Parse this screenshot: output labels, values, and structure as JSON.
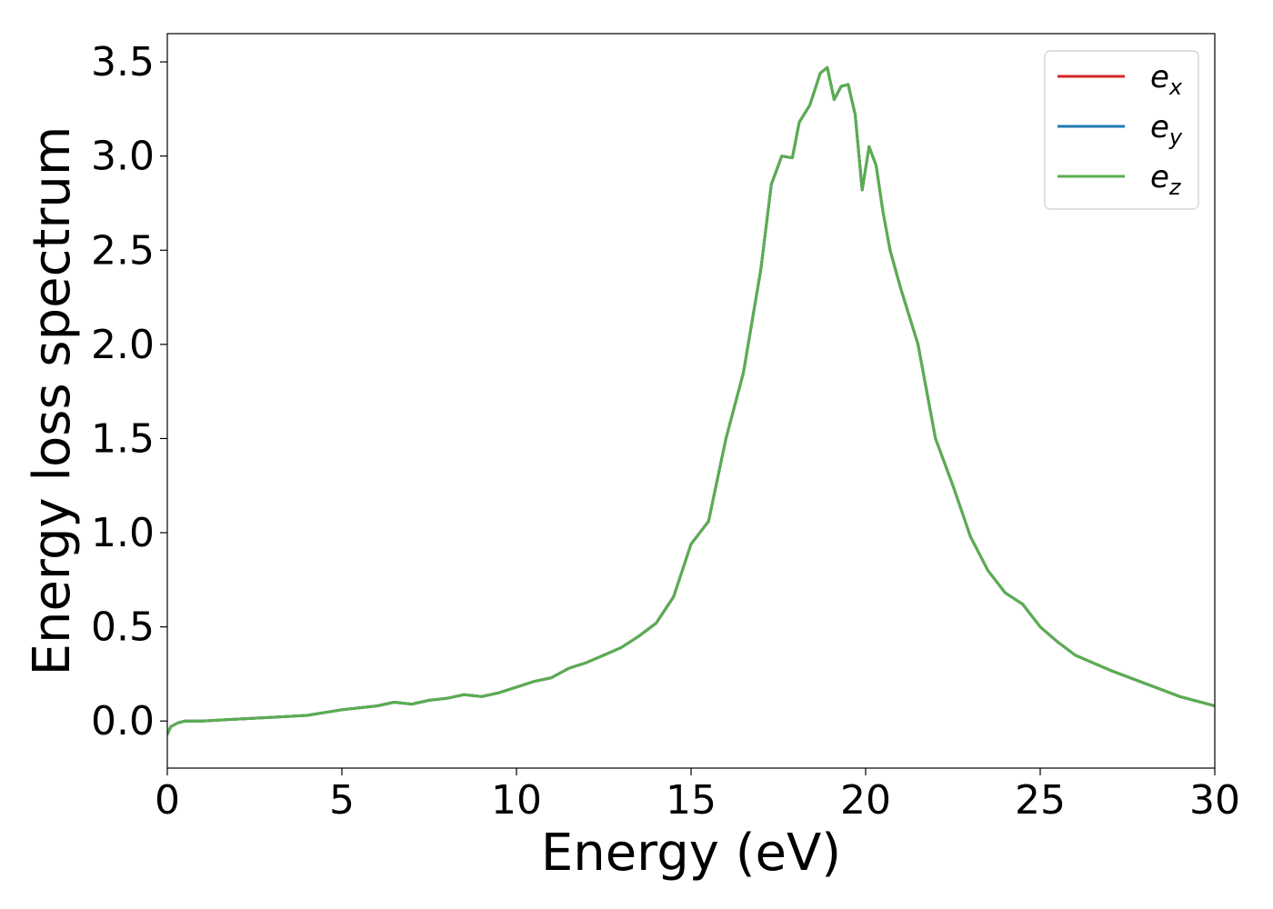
{
  "chart_data": {
    "type": "line",
    "xlabel": "Energy (eV)",
    "ylabel": "Energy loss spectrum",
    "xlim": [
      0,
      30
    ],
    "ylim": [
      -0.25,
      3.65
    ],
    "xticks": [
      0,
      5,
      10,
      15,
      20,
      25,
      30
    ],
    "xtick_labels": [
      "0",
      "5",
      "10",
      "15",
      "20",
      "25",
      "30"
    ],
    "yticks": [
      0.0,
      0.5,
      1.0,
      1.5,
      2.0,
      2.5,
      3.0,
      3.5
    ],
    "ytick_labels": [
      "0.0",
      "0.5",
      "1.0",
      "1.5",
      "2.0",
      "2.5",
      "3.0",
      "3.5"
    ],
    "grid": false,
    "legend_position": "top-right",
    "legend": [
      {
        "base": "e",
        "sub": "x",
        "color": "#d62728"
      },
      {
        "base": "e",
        "sub": "y",
        "color": "#1f77b4"
      },
      {
        "base": "e",
        "sub": "z",
        "color": "#5aae4f"
      }
    ],
    "x": [
      0,
      0.1,
      0.3,
      0.5,
      1,
      2,
      3,
      4,
      5,
      6,
      6.5,
      7,
      7.5,
      8,
      8.5,
      9,
      9.5,
      10,
      10.5,
      11,
      11.5,
      12,
      12.5,
      13,
      13.5,
      14,
      14.5,
      15,
      15.5,
      16,
      16.5,
      17,
      17.3,
      17.6,
      17.9,
      18.1,
      18.4,
      18.7,
      18.9,
      19.1,
      19.3,
      19.5,
      19.7,
      19.9,
      20.1,
      20.3,
      20.5,
      20.7,
      21,
      21.5,
      22,
      22.5,
      23,
      23.5,
      24,
      24.5,
      25,
      25.5,
      26,
      27,
      28,
      29,
      30
    ],
    "series": [
      {
        "values": [
          -0.07,
          -0.03,
          -0.01,
          0.0,
          0.0,
          0.01,
          0.02,
          0.03,
          0.06,
          0.08,
          0.1,
          0.09,
          0.11,
          0.12,
          0.14,
          0.13,
          0.15,
          0.18,
          0.21,
          0.23,
          0.28,
          0.31,
          0.35,
          0.39,
          0.45,
          0.52,
          0.66,
          0.94,
          1.06,
          1.5,
          1.85,
          2.4,
          2.85,
          3.0,
          2.99,
          3.18,
          3.27,
          3.44,
          3.47,
          3.3,
          3.37,
          3.38,
          3.22,
          2.82,
          3.05,
          2.95,
          2.7,
          2.5,
          2.3,
          2.0,
          1.5,
          1.25,
          0.98,
          0.8,
          0.68,
          0.62,
          0.5,
          0.42,
          0.35,
          0.27,
          0.2,
          0.13,
          0.08
        ]
      },
      {
        "values": [
          -0.07,
          -0.03,
          -0.01,
          0.0,
          0.0,
          0.01,
          0.02,
          0.03,
          0.06,
          0.08,
          0.1,
          0.09,
          0.11,
          0.12,
          0.14,
          0.13,
          0.15,
          0.18,
          0.21,
          0.23,
          0.28,
          0.31,
          0.35,
          0.39,
          0.45,
          0.52,
          0.66,
          0.94,
          1.06,
          1.5,
          1.85,
          2.4,
          2.85,
          3.0,
          2.99,
          3.18,
          3.27,
          3.44,
          3.47,
          3.3,
          3.37,
          3.38,
          3.22,
          2.82,
          3.05,
          2.95,
          2.7,
          2.5,
          2.3,
          2.0,
          1.5,
          1.25,
          0.98,
          0.8,
          0.68,
          0.62,
          0.5,
          0.42,
          0.35,
          0.27,
          0.2,
          0.13,
          0.08
        ]
      },
      {
        "values": [
          -0.07,
          -0.03,
          -0.01,
          0.0,
          0.0,
          0.01,
          0.02,
          0.03,
          0.06,
          0.08,
          0.1,
          0.09,
          0.11,
          0.12,
          0.14,
          0.13,
          0.15,
          0.18,
          0.21,
          0.23,
          0.28,
          0.31,
          0.35,
          0.39,
          0.45,
          0.52,
          0.66,
          0.94,
          1.06,
          1.5,
          1.85,
          2.4,
          2.85,
          3.0,
          2.99,
          3.18,
          3.27,
          3.44,
          3.47,
          3.3,
          3.37,
          3.38,
          3.22,
          2.82,
          3.05,
          2.95,
          2.7,
          2.5,
          2.3,
          2.0,
          1.5,
          1.25,
          0.98,
          0.8,
          0.68,
          0.62,
          0.5,
          0.42,
          0.35,
          0.27,
          0.2,
          0.13,
          0.08
        ]
      }
    ]
  }
}
